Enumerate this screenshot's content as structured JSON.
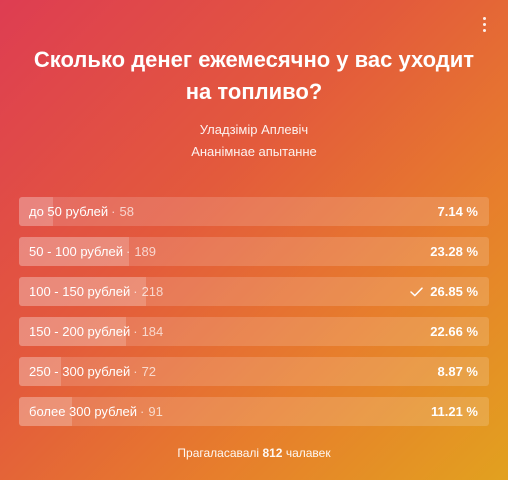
{
  "poll": {
    "question": "Сколько денег ежемесячно у вас уходит на топливо?",
    "author": "Уладзімір Аплевіч",
    "type": "Ананімнае апытанне",
    "options": [
      {
        "label": "до 50 рублей",
        "count": "58",
        "percent_text": "7.14 %",
        "percent": 7.14,
        "voted": false
      },
      {
        "label": "50 - 100 рублей",
        "count": "189",
        "percent_text": "23.28 %",
        "percent": 23.28,
        "voted": false
      },
      {
        "label": "100 - 150 рублей",
        "count": "218",
        "percent_text": "26.85 %",
        "percent": 26.85,
        "voted": true
      },
      {
        "label": "150 - 200 рублей",
        "count": "184",
        "percent_text": "22.66 %",
        "percent": 22.66,
        "voted": false
      },
      {
        "label": "250 - 300 рублей",
        "count": "72",
        "percent_text": "8.87 %",
        "percent": 8.87,
        "voted": false
      },
      {
        "label": "более 300 рублей",
        "count": "91",
        "percent_text": "11.21 %",
        "percent": 11.21,
        "voted": false
      }
    ],
    "footer": {
      "prefix": "Прагаласавалі",
      "total": "812",
      "suffix": "чалавек"
    }
  },
  "icons": {
    "menu": "more-vertical-icon",
    "voted": "checkmark-icon"
  }
}
